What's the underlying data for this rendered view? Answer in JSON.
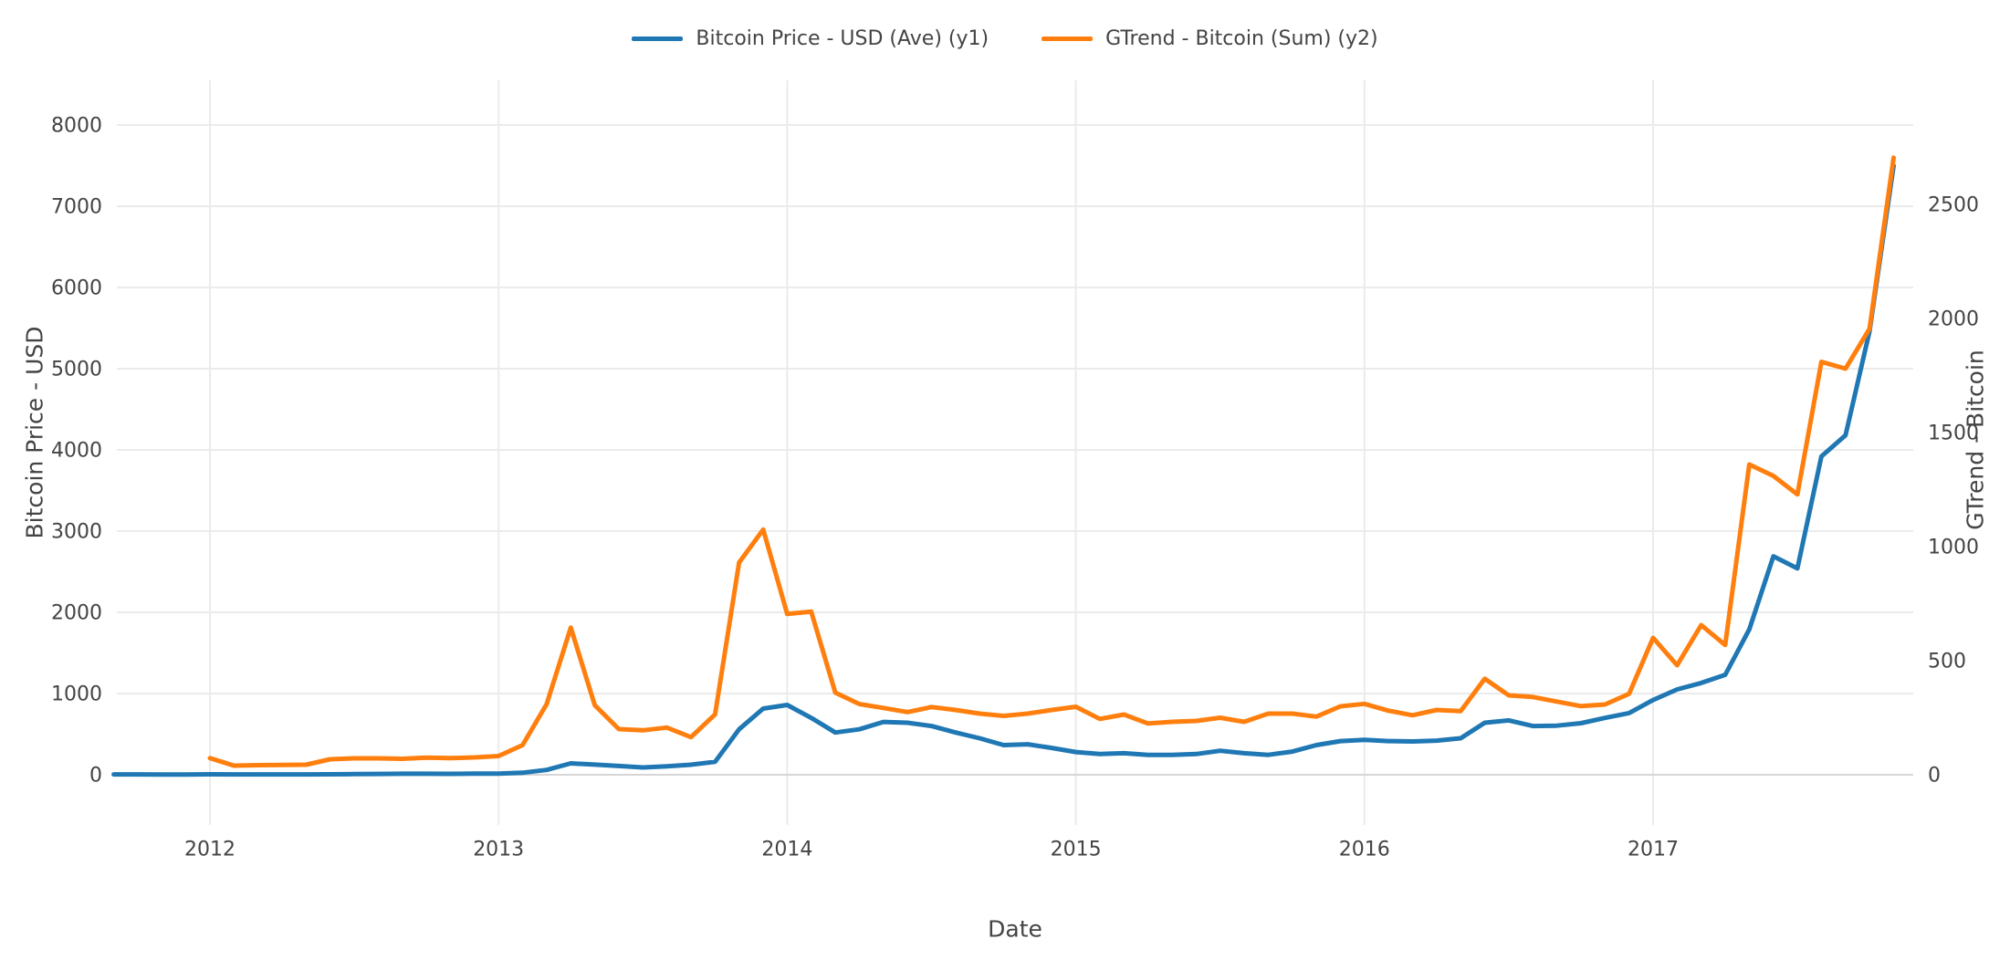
{
  "chart_data": {
    "type": "line",
    "title": "",
    "xlabel": "Date",
    "y1label": "Bitcoin Price - USD",
    "y2label": "GTrend - Bitcoin",
    "legend_position": "top-center",
    "grid": true,
    "x_ticks": [
      2012,
      2013,
      2014,
      2015,
      2016,
      2017
    ],
    "y1_ticks": [
      0,
      1000,
      2000,
      3000,
      4000,
      5000,
      6000,
      7000,
      8000
    ],
    "y2_ticks": [
      0,
      500,
      1000,
      1500,
      2000,
      2500
    ],
    "y1_range": [
      0,
      8000
    ],
    "y2_range": [
      0,
      2500
    ],
    "months": [
      "2011-09",
      "2011-10",
      "2011-11",
      "2011-12",
      "2012-01",
      "2012-02",
      "2012-03",
      "2012-04",
      "2012-05",
      "2012-06",
      "2012-07",
      "2012-08",
      "2012-09",
      "2012-10",
      "2012-11",
      "2012-12",
      "2013-01",
      "2013-02",
      "2013-03",
      "2013-04",
      "2013-05",
      "2013-06",
      "2013-07",
      "2013-08",
      "2013-09",
      "2013-10",
      "2013-11",
      "2013-12",
      "2014-01",
      "2014-02",
      "2014-03",
      "2014-04",
      "2014-05",
      "2014-06",
      "2014-07",
      "2014-08",
      "2014-09",
      "2014-10",
      "2014-11",
      "2014-12",
      "2015-01",
      "2015-02",
      "2015-03",
      "2015-04",
      "2015-05",
      "2015-06",
      "2015-07",
      "2015-08",
      "2015-09",
      "2015-10",
      "2015-11",
      "2015-12",
      "2016-01",
      "2016-02",
      "2016-03",
      "2016-04",
      "2016-05",
      "2016-06",
      "2016-07",
      "2016-08",
      "2016-09",
      "2016-10",
      "2016-11",
      "2016-12",
      "2017-01",
      "2017-02",
      "2017-03",
      "2017-04",
      "2017-05",
      "2017-06",
      "2017-07",
      "2017-08",
      "2017-09",
      "2017-10",
      "2017-11"
    ],
    "series": [
      {
        "id": "btc-price",
        "name": "Bitcoin Price - USD (Ave) (y1)",
        "axis": "y1",
        "color": "#1f77b4",
        "values": [
          5,
          4,
          3,
          3,
          6,
          5,
          5,
          5,
          5,
          6,
          8,
          10,
          12,
          12,
          11,
          13,
          15,
          25,
          60,
          140,
          125,
          108,
          90,
          105,
          124,
          160,
          560,
          815,
          860,
          700,
          520,
          560,
          650,
          640,
          600,
          520,
          450,
          365,
          375,
          330,
          280,
          255,
          265,
          245,
          245,
          255,
          295,
          265,
          245,
          285,
          365,
          415,
          430,
          415,
          410,
          420,
          450,
          640,
          670,
          600,
          605,
          635,
          700,
          760,
          920,
          1050,
          1130,
          1230,
          1790,
          2690,
          2540,
          3920,
          4180,
          5460,
          7500
        ]
      },
      {
        "id": "gtrend",
        "name": "GTrend - Bitcoin (Sum) (y2)",
        "axis": "y2",
        "color": "#ff7f0e",
        "values": [
          null,
          null,
          null,
          null,
          73,
          40,
          42,
          43,
          44,
          68,
          72,
          72,
          70,
          75,
          73,
          76,
          82,
          130,
          310,
          645,
          305,
          200,
          195,
          207,
          165,
          265,
          930,
          1075,
          705,
          715,
          360,
          310,
          293,
          275,
          297,
          284,
          268,
          258,
          268,
          284,
          298,
          245,
          264,
          225,
          232,
          236,
          250,
          232,
          268,
          268,
          255,
          300,
          311,
          281,
          261,
          284,
          279,
          421,
          348,
          341,
          321,
          301,
          308,
          355,
          600,
          480,
          656,
          569,
          1360,
          1310,
          1229,
          1810,
          1780,
          1955,
          2705
        ]
      }
    ],
    "style": {
      "grid_color": "#ebebeb",
      "zero_line_color": "#d6d6d6",
      "text_color": "#444444",
      "background": "#ffffff",
      "line_width": 5
    }
  }
}
